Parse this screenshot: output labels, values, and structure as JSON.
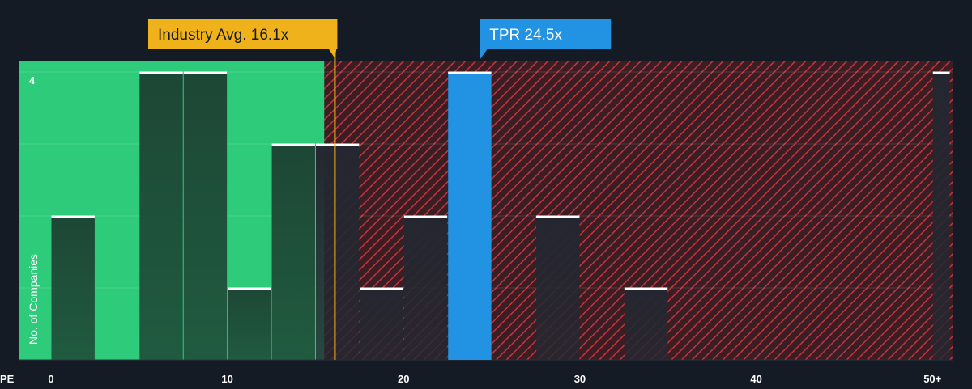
{
  "chart_data": {
    "type": "bar",
    "xlabel": "PE",
    "ylabel": "No. of Companies",
    "xlim": [
      0,
      51
    ],
    "ylim": [
      0,
      4
    ],
    "y_tick_labels": [
      {
        "value": 4,
        "label": "4"
      }
    ],
    "x_ticks": [
      {
        "value": 0,
        "label": "0"
      },
      {
        "value": 10,
        "label": "10"
      },
      {
        "value": 20,
        "label": "20"
      },
      {
        "value": 30,
        "label": "30"
      },
      {
        "value": 40,
        "label": "40"
      },
      {
        "value": 50,
        "label": "50+"
      }
    ],
    "bins": [
      {
        "x0": 0,
        "x1": 2.5,
        "count": 2
      },
      {
        "x0": 5,
        "x1": 7.5,
        "count": 4
      },
      {
        "x0": 7.5,
        "x1": 10,
        "count": 4
      },
      {
        "x0": 10,
        "x1": 12.5,
        "count": 1
      },
      {
        "x0": 12.5,
        "x1": 15,
        "count": 3
      },
      {
        "x0": 15,
        "x1": 17.5,
        "count": 3
      },
      {
        "x0": 17.5,
        "x1": 20,
        "count": 1
      },
      {
        "x0": 20,
        "x1": 22.5,
        "count": 2
      },
      {
        "x0": 22.5,
        "x1": 25,
        "count": 4,
        "highlight": true
      },
      {
        "x0": 27.5,
        "x1": 30,
        "count": 2
      },
      {
        "x0": 32.5,
        "x1": 35,
        "count": 1
      },
      {
        "x0": 50,
        "x1": 51,
        "count": 4
      }
    ],
    "fair_zone_max": 15.5,
    "industry_avg": {
      "value": 16.1,
      "label": "Industry Avg. 16.1x"
    },
    "company": {
      "value": 24.5,
      "label": "TPR 24.5x"
    },
    "grid": true
  },
  "colors": {
    "background": "#151b24",
    "fair_zone": "#2ecc7a",
    "overvalued_zone": "#3a1e24",
    "hatch": "#c4343f",
    "bar_in_fair": "#1d4735",
    "bar_in_over": "#242730",
    "bar_highlight": "#2292e2",
    "bar_cap": "#ffffff",
    "industry_avg": "#f0b21a",
    "company_label": "#2292e2",
    "gridline": "#2c3340"
  }
}
